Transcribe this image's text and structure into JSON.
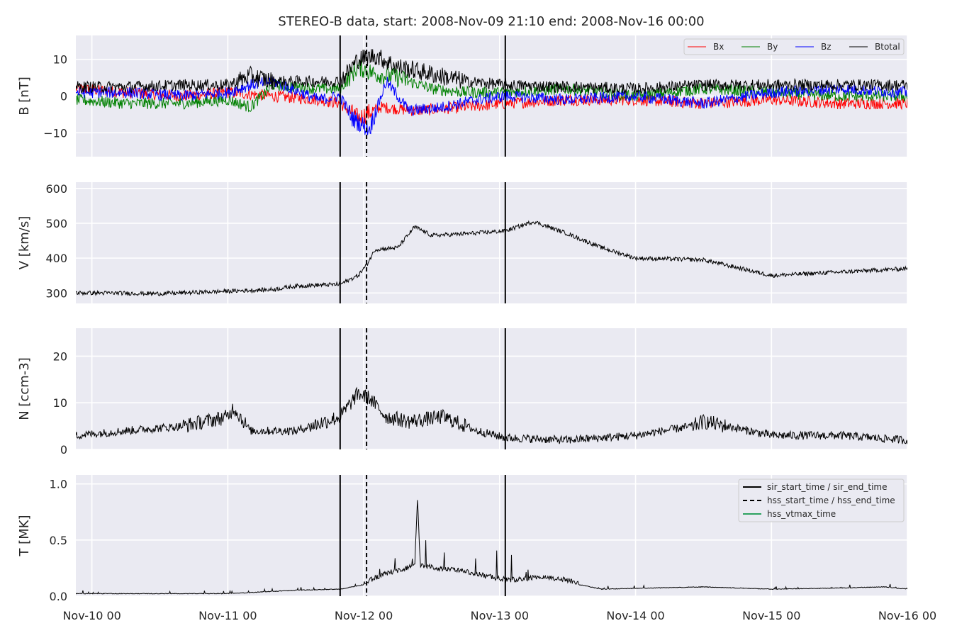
{
  "chart_data": {
    "type": "line",
    "title": "STEREO-B data, start: 2008-Nov-09 21:10  end: 2008-Nov-16 00:00",
    "x_range": [
      "2008-11-09 21:10",
      "2008-11-16 00:00"
    ],
    "x_ticks": [
      "Nov-10 00",
      "Nov-11 00",
      "Nov-12 00",
      "Nov-13 00",
      "Nov-14 00",
      "Nov-15 00",
      "Nov-16 00"
    ],
    "x_tick_dates": [
      "2008-11-10 00:00",
      "2008-11-11 00:00",
      "2008-11-12 00:00",
      "2008-11-13 00:00",
      "2008-11-14 00:00",
      "2008-11-15 00:00",
      "2008-11-16 00:00"
    ],
    "grid": true,
    "event_lines": [
      {
        "name": "sir_start_time / sir_end_time",
        "style": "solid",
        "color": "#000000",
        "times": [
          "2008-11-11 19:50",
          "2008-11-13 01:00"
        ]
      },
      {
        "name": "hss_start_time / hss_end_time",
        "style": "dashed",
        "color": "#000000",
        "times": [
          "2008-11-12 00:30"
        ]
      },
      {
        "name": "hss_vtmax_time",
        "style": "solid",
        "color": "#2ca25f",
        "times": []
      }
    ],
    "panels": [
      {
        "id": "B",
        "ylabel": "B [nT]",
        "ylim": [
          -16.5,
          16.5
        ],
        "yticks": [
          "−10",
          "0",
          "10"
        ],
        "ytick_values": [
          -10,
          0,
          10
        ],
        "legend_position": "top-right",
        "series": [
          {
            "name": "Bx",
            "color": "#ff0000",
            "times": [
              "2008-11-09 21:10",
              "2008-11-10 06:00",
              "2008-11-10 16:00",
              "2008-11-11 00:00",
              "2008-11-11 08:00",
              "2008-11-11 16:00",
              "2008-11-11 19:50",
              "2008-11-11 23:00",
              "2008-11-12 03:00",
              "2008-11-12 09:00",
              "2008-11-12 18:00",
              "2008-11-13 01:00",
              "2008-11-13 12:00",
              "2008-11-14 00:00",
              "2008-11-14 12:00",
              "2008-11-15 00:00",
              "2008-11-15 12:00",
              "2008-11-16 00:00"
            ],
            "values": [
              2,
              1,
              0,
              1,
              0,
              -1,
              -2,
              -6,
              -3,
              -4,
              -3,
              -2,
              -1,
              -1,
              -2,
              -1,
              -2,
              -2
            ]
          },
          {
            "name": "By",
            "color": "#008000",
            "times": [
              "2008-11-09 21:10",
              "2008-11-10 06:00",
              "2008-11-10 16:00",
              "2008-11-11 00:00",
              "2008-11-11 04:00",
              "2008-11-11 08:00",
              "2008-11-11 16:00",
              "2008-11-11 19:50",
              "2008-11-11 23:00",
              "2008-11-12 02:00",
              "2008-11-12 06:00",
              "2008-11-12 12:00",
              "2008-11-12 18:00",
              "2008-11-13 01:00",
              "2008-11-13 12:00",
              "2008-11-14 00:00",
              "2008-11-14 12:00",
              "2008-11-15 00:00",
              "2008-11-15 12:00",
              "2008-11-16 00:00"
            ],
            "values": [
              -1,
              -2,
              -2,
              -1,
              -3,
              3,
              2,
              2,
              8,
              6,
              5,
              2,
              1,
              1,
              2,
              0,
              2,
              1,
              0,
              0
            ]
          },
          {
            "name": "Bz",
            "color": "#0000ff",
            "times": [
              "2008-11-09 21:10",
              "2008-11-10 06:00",
              "2008-11-10 16:00",
              "2008-11-11 00:00",
              "2008-11-11 04:00",
              "2008-11-11 08:00",
              "2008-11-11 16:00",
              "2008-11-11 19:50",
              "2008-11-11 22:00",
              "2008-11-12 01:00",
              "2008-11-12 04:00",
              "2008-11-12 08:00",
              "2008-11-12 14:00",
              "2008-11-12 20:00",
              "2008-11-13 01:00",
              "2008-11-13 12:00",
              "2008-11-14 00:00",
              "2008-11-14 12:00",
              "2008-11-15 00:00",
              "2008-11-15 12:00",
              "2008-11-16 00:00"
            ],
            "values": [
              1,
              1,
              0,
              1,
              3,
              4,
              -1,
              0,
              -6,
              -9,
              4,
              -4,
              -3,
              -1,
              0,
              -1,
              0,
              -2,
              1,
              2,
              1
            ]
          },
          {
            "name": "Btotal",
            "color": "#000000",
            "times": [
              "2008-11-09 21:10",
              "2008-11-10 06:00",
              "2008-11-10 16:00",
              "2008-11-11 00:00",
              "2008-11-11 04:00",
              "2008-11-11 08:00",
              "2008-11-11 16:00",
              "2008-11-11 19:50",
              "2008-11-11 23:00",
              "2008-11-12 02:00",
              "2008-11-12 06:00",
              "2008-11-12 12:00",
              "2008-11-12 18:00",
              "2008-11-13 01:00",
              "2008-11-13 12:00",
              "2008-11-14 00:00",
              "2008-11-14 12:00",
              "2008-11-15 00:00",
              "2008-11-15 12:00",
              "2008-11-16 00:00"
            ],
            "values": [
              2.5,
              2.5,
              3,
              3,
              5.5,
              4,
              4,
              4,
              10,
              11,
              8,
              6,
              4,
              3,
              2.5,
              2,
              3,
              3,
              3,
              3
            ]
          }
        ]
      },
      {
        "id": "V",
        "ylabel": "V [km/s]",
        "ylim": [
          270,
          618
        ],
        "yticks": [
          "300",
          "400",
          "500",
          "600"
        ],
        "ytick_values": [
          300,
          400,
          500,
          600
        ],
        "series": [
          {
            "name": "",
            "color": "#000000",
            "times": [
              "2008-11-09 21:10",
              "2008-11-10 02:00",
              "2008-11-10 12:00",
              "2008-11-11 00:00",
              "2008-11-11 08:00",
              "2008-11-11 12:00",
              "2008-11-11 19:50",
              "2008-11-11 23:00",
              "2008-11-12 00:30",
              "2008-11-12 02:00",
              "2008-11-12 06:00",
              "2008-11-12 09:00",
              "2008-11-12 12:00",
              "2008-11-12 18:00",
              "2008-11-13 01:00",
              "2008-11-13 06:00",
              "2008-11-13 12:00",
              "2008-11-13 18:00",
              "2008-11-14 00:00",
              "2008-11-14 12:00",
              "2008-11-15 00:00",
              "2008-11-15 06:00",
              "2008-11-15 12:00",
              "2008-11-16 00:00"
            ],
            "values": [
              300,
              300,
              298,
              305,
              310,
              320,
              325,
              350,
              380,
              425,
              430,
              490,
              465,
              470,
              478,
              505,
              470,
              430,
              400,
              395,
              350,
              355,
              360,
              370
            ]
          }
        ]
      },
      {
        "id": "N",
        "ylabel": "N [ccm-3]",
        "ylim": [
          0,
          26
        ],
        "yticks": [
          "0",
          "10",
          "20"
        ],
        "ytick_values": [
          0,
          10,
          20
        ],
        "series": [
          {
            "name": "",
            "color": "#000000",
            "times": [
              "2008-11-09 21:10",
              "2008-11-10 06:00",
              "2008-11-10 16:00",
              "2008-11-11 00:00",
              "2008-11-11 01:00",
              "2008-11-11 04:00",
              "2008-11-11 12:00",
              "2008-11-11 19:50",
              "2008-11-11 23:00",
              "2008-11-12 01:00",
              "2008-11-12 04:00",
              "2008-11-12 08:00",
              "2008-11-12 14:00",
              "2008-11-12 20:00",
              "2008-11-13 01:00",
              "2008-11-13 12:00",
              "2008-11-14 00:00",
              "2008-11-14 10:00",
              "2008-11-14 12:00",
              "2008-11-15 00:00",
              "2008-11-15 12:00",
              "2008-11-16 00:00"
            ],
            "values": [
              3,
              4,
              5,
              7,
              9,
              4,
              4,
              7,
              12,
              11,
              7,
              6,
              7,
              4,
              2.5,
              2,
              3,
              5,
              6,
              3,
              3,
              2
            ]
          }
        ]
      },
      {
        "id": "T",
        "ylabel": "T [MK]",
        "ylim": [
          0,
          1.08
        ],
        "yticks": [
          "0.0",
          "0.5",
          "1.0"
        ],
        "ytick_values": [
          0.0,
          0.5,
          1.0
        ],
        "legend_position": "top-right",
        "series": [
          {
            "name": "",
            "color": "#000000",
            "times": [
              "2008-11-09 21:10",
              "2008-11-10 12:00",
              "2008-11-11 00:00",
              "2008-11-11 04:00",
              "2008-11-11 12:00",
              "2008-11-11 19:50",
              "2008-11-12 00:00",
              "2008-11-12 04:00",
              "2008-11-12 09:00",
              "2008-11-12 09:30",
              "2008-11-12 10:00",
              "2008-11-12 14:00",
              "2008-11-12 18:00",
              "2008-11-13 01:00",
              "2008-11-13 08:00",
              "2008-11-13 12:00",
              "2008-11-13 18:00",
              "2008-11-14 12:00",
              "2008-11-15 00:00",
              "2008-11-15 12:00",
              "2008-11-15 20:00",
              "2008-11-16 00:00"
            ],
            "values": [
              0.02,
              0.02,
              0.02,
              0.03,
              0.05,
              0.06,
              0.1,
              0.18,
              0.25,
              0.85,
              0.25,
              0.22,
              0.2,
              0.12,
              0.15,
              0.12,
              0.06,
              0.08,
              0.06,
              0.07,
              0.08,
              0.06
            ]
          }
        ]
      }
    ],
    "legend_T": [
      {
        "name": "sir_start_time / sir_end_time",
        "style": "solid",
        "color": "#000000"
      },
      {
        "name": "hss_start_time / hss_end_time",
        "style": "dashed",
        "color": "#000000"
      },
      {
        "name": "hss_vtmax_time",
        "style": "solid",
        "color": "#2ca25f"
      }
    ]
  }
}
